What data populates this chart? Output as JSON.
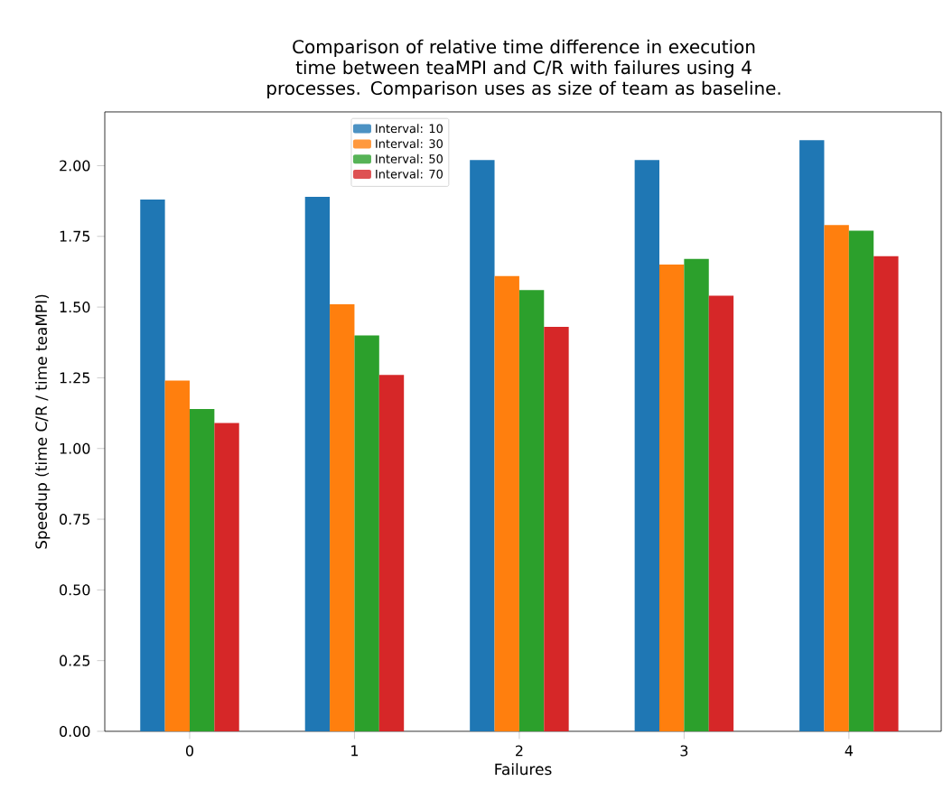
{
  "chart_data": {
    "type": "bar",
    "title": "Comparison of relative time difference in execution time between teaMPI and C/R with failures using 4 processes. Comparison uses as size of team as baseline.",
    "xlabel": "Failures",
    "ylabel": "Speedup (time C/R / time teaMPI)",
    "categories": [
      "0",
      "1",
      "2",
      "3",
      "4"
    ],
    "series": [
      {
        "name": "Interval: 10",
        "color": "#1f77b4",
        "values": [
          1.88,
          1.89,
          2.02,
          2.02,
          2.09
        ]
      },
      {
        "name": "Interval: 30",
        "color": "#ff7f0e",
        "values": [
          1.24,
          1.51,
          1.61,
          1.65,
          1.79
        ]
      },
      {
        "name": "Interval: 50",
        "color": "#2ca02c",
        "values": [
          1.14,
          1.4,
          1.56,
          1.67,
          1.77
        ]
      },
      {
        "name": "Interval: 70",
        "color": "#d62728",
        "values": [
          1.09,
          1.26,
          1.43,
          1.54,
          1.68
        ]
      }
    ],
    "ylim": [
      0,
      2.19
    ],
    "yticks": [
      {
        "value": 0,
        "label": "0.00"
      },
      {
        "value": 0.25,
        "label": "0.25"
      },
      {
        "value": 0.5,
        "label": "0.50"
      },
      {
        "value": 0.75,
        "label": "0.75"
      },
      {
        "value": 1.0,
        "label": "1.00"
      },
      {
        "value": 1.25,
        "label": "1.25"
      },
      {
        "value": 1.5,
        "label": "1.50"
      },
      {
        "value": 1.75,
        "label": "1.75"
      },
      {
        "value": 2.0,
        "label": "2.00"
      }
    ],
    "legend": "top"
  }
}
